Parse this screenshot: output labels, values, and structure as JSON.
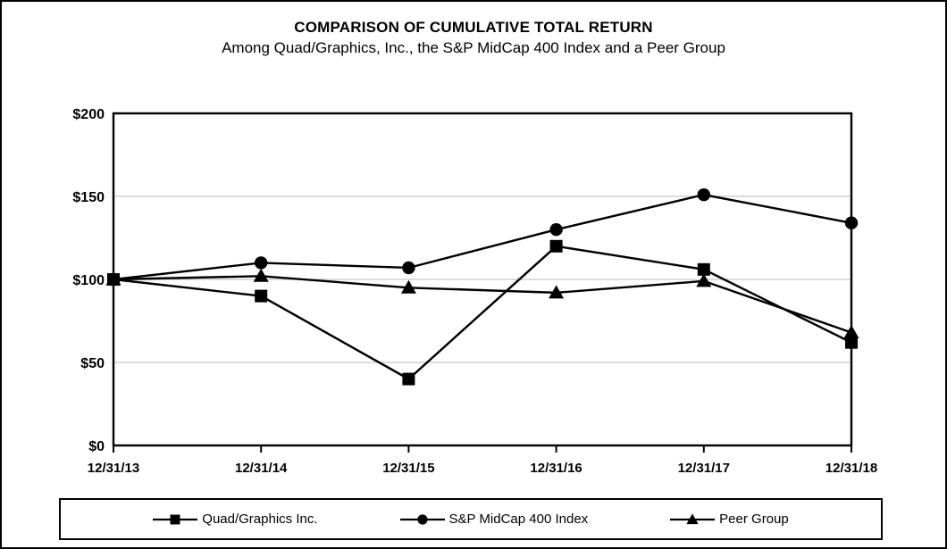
{
  "page": {
    "background_color": "#ffffff",
    "frame_border_color": "#000000"
  },
  "chart_data": {
    "type": "line",
    "title": "COMPARISON OF CUMULATIVE TOTAL RETURN",
    "subtitle": "Among Quad/Graphics, Inc., the S&P MidCap 400 Index and a Peer Group",
    "x_labels": [
      "12/31/13",
      "12/31/14",
      "12/31/15",
      "12/31/16",
      "12/31/17",
      "12/31/18"
    ],
    "y_tick_labels": [
      "$0",
      "$50",
      "$100",
      "$150",
      "$200"
    ],
    "y_tick_values": [
      0,
      50,
      100,
      150,
      200
    ],
    "ylim": [
      0,
      200
    ],
    "grid": "horizontal gridlines at $50, $100, $150",
    "legend_position": "bottom",
    "series": [
      {
        "name": "Quad/Graphics Inc.",
        "marker": "square",
        "values": [
          100,
          90,
          40,
          120,
          106,
          62
        ]
      },
      {
        "name": "S&P MidCap 400 Index",
        "marker": "circle",
        "values": [
          100,
          110,
          107,
          130,
          151,
          134
        ]
      },
      {
        "name": "Peer Group",
        "marker": "triangle",
        "values": [
          100,
          102,
          95,
          92,
          99,
          68
        ]
      }
    ],
    "line_color": "#000000",
    "marker_color": "#000000",
    "grid_color": "#c8c8c8",
    "axis_color": "#000000"
  }
}
